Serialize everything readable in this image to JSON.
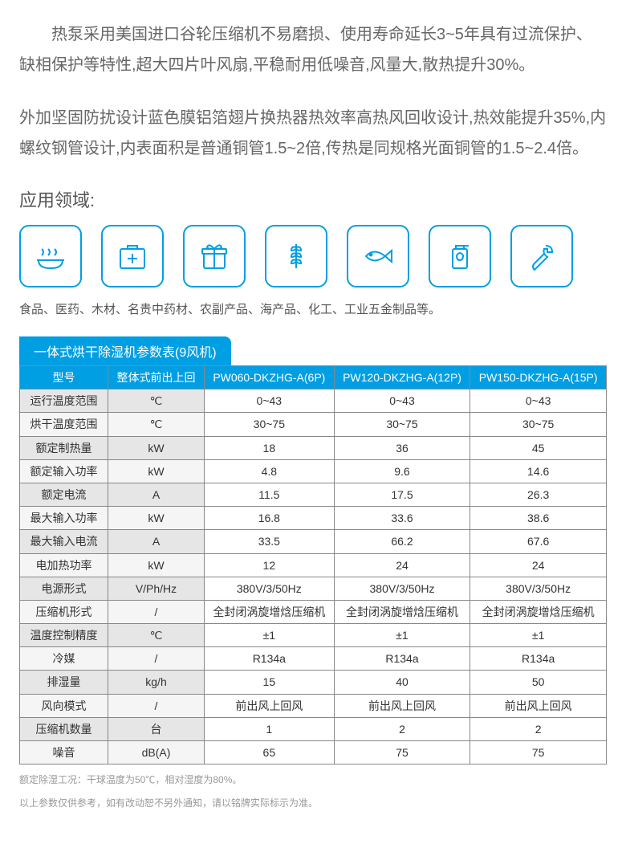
{
  "paragraphs": {
    "p1": "热泵采用美国进口谷轮压缩机不易磨损、使用寿命延长3~5年具有过流保护、缺相保护等特性,超大四片叶风扇,平稳耐用低噪音,风量大,散热提升30%。",
    "p2": "外加坚固防扰设计蓝色膜铝箔翅片换热器热效率高热风回收设计,热效能提升35%,内螺纹钢管设计,内表面积是普通铜管1.5~2倍,传热是同规格光面铜管的1.5~2.4倍。"
  },
  "application": {
    "title": "应用领域:",
    "caption": "食品、医药、木材、名贵中药材、农副产品、海产品、化工、工业五金制品等。",
    "icons": [
      "food",
      "medical",
      "gift",
      "wheat",
      "fish",
      "oil",
      "wrench"
    ]
  },
  "table": {
    "title": "一体式烘干除湿机参数表(9风机)",
    "headers": {
      "model": "型号",
      "unitHeader": "整体式前出上回",
      "m1": "PW060-DKZHG-A(6P)",
      "m2": "PW120-DKZHG-A(12P)",
      "m3": "PW150-DKZHG-A(15P)"
    },
    "rows": [
      {
        "label": "运行温度范围",
        "unit": "℃",
        "v": [
          "0~43",
          "0~43",
          "0~43"
        ]
      },
      {
        "label": "烘干温度范围",
        "unit": "℃",
        "v": [
          "30~75",
          "30~75",
          "30~75"
        ]
      },
      {
        "label": "额定制热量",
        "unit": "kW",
        "v": [
          "18",
          "36",
          "45"
        ]
      },
      {
        "label": "额定输入功率",
        "unit": "kW",
        "v": [
          "4.8",
          "9.6",
          "14.6"
        ]
      },
      {
        "label": "额定电流",
        "unit": "A",
        "v": [
          "11.5",
          "17.5",
          "26.3"
        ]
      },
      {
        "label": "最大输入功率",
        "unit": "kW",
        "v": [
          "16.8",
          "33.6",
          "38.6"
        ]
      },
      {
        "label": "最大输入电流",
        "unit": "A",
        "v": [
          "33.5",
          "66.2",
          "67.6"
        ]
      },
      {
        "label": "电加热功率",
        "unit": "kW",
        "v": [
          "12",
          "24",
          "24"
        ]
      },
      {
        "label": "电源形式",
        "unit": "V/Ph/Hz",
        "v": [
          "380V/3/50Hz",
          "380V/3/50Hz",
          "380V/3/50Hz"
        ]
      },
      {
        "label": "压缩机形式",
        "unit": "/",
        "v": [
          "全封闭涡旋增焓压缩机",
          "全封闭涡旋增焓压缩机",
          "全封闭涡旋增焓压缩机"
        ]
      },
      {
        "label": "温度控制精度",
        "unit": "℃",
        "v": [
          "±1",
          "±1",
          "±1"
        ]
      },
      {
        "label": "冷媒",
        "unit": "/",
        "v": [
          "R134a",
          "R134a",
          "R134a"
        ]
      },
      {
        "label": "排湿量",
        "unit": "kg/h",
        "v": [
          "15",
          "40",
          "50"
        ]
      },
      {
        "label": "风向模式",
        "unit": "/",
        "v": [
          "前出风上回风",
          "前出风上回风",
          "前出风上回风"
        ]
      },
      {
        "label": "压缩机数量",
        "unit": "台",
        "v": [
          "1",
          "2",
          "2"
        ]
      },
      {
        "label": "噪音",
        "unit": "dB(A)",
        "v": [
          "65",
          "75",
          "75"
        ]
      }
    ]
  },
  "footnotes": {
    "f1": "额定除湿工况：干球温度为50℃，相对湿度为80%。",
    "f2": "以上参数仅供参考，如有改动恕不另外通知，请以铭牌实际标示为准。"
  },
  "colors": {
    "accent": "#009ee3",
    "text": "#666666",
    "border": "#888888"
  }
}
